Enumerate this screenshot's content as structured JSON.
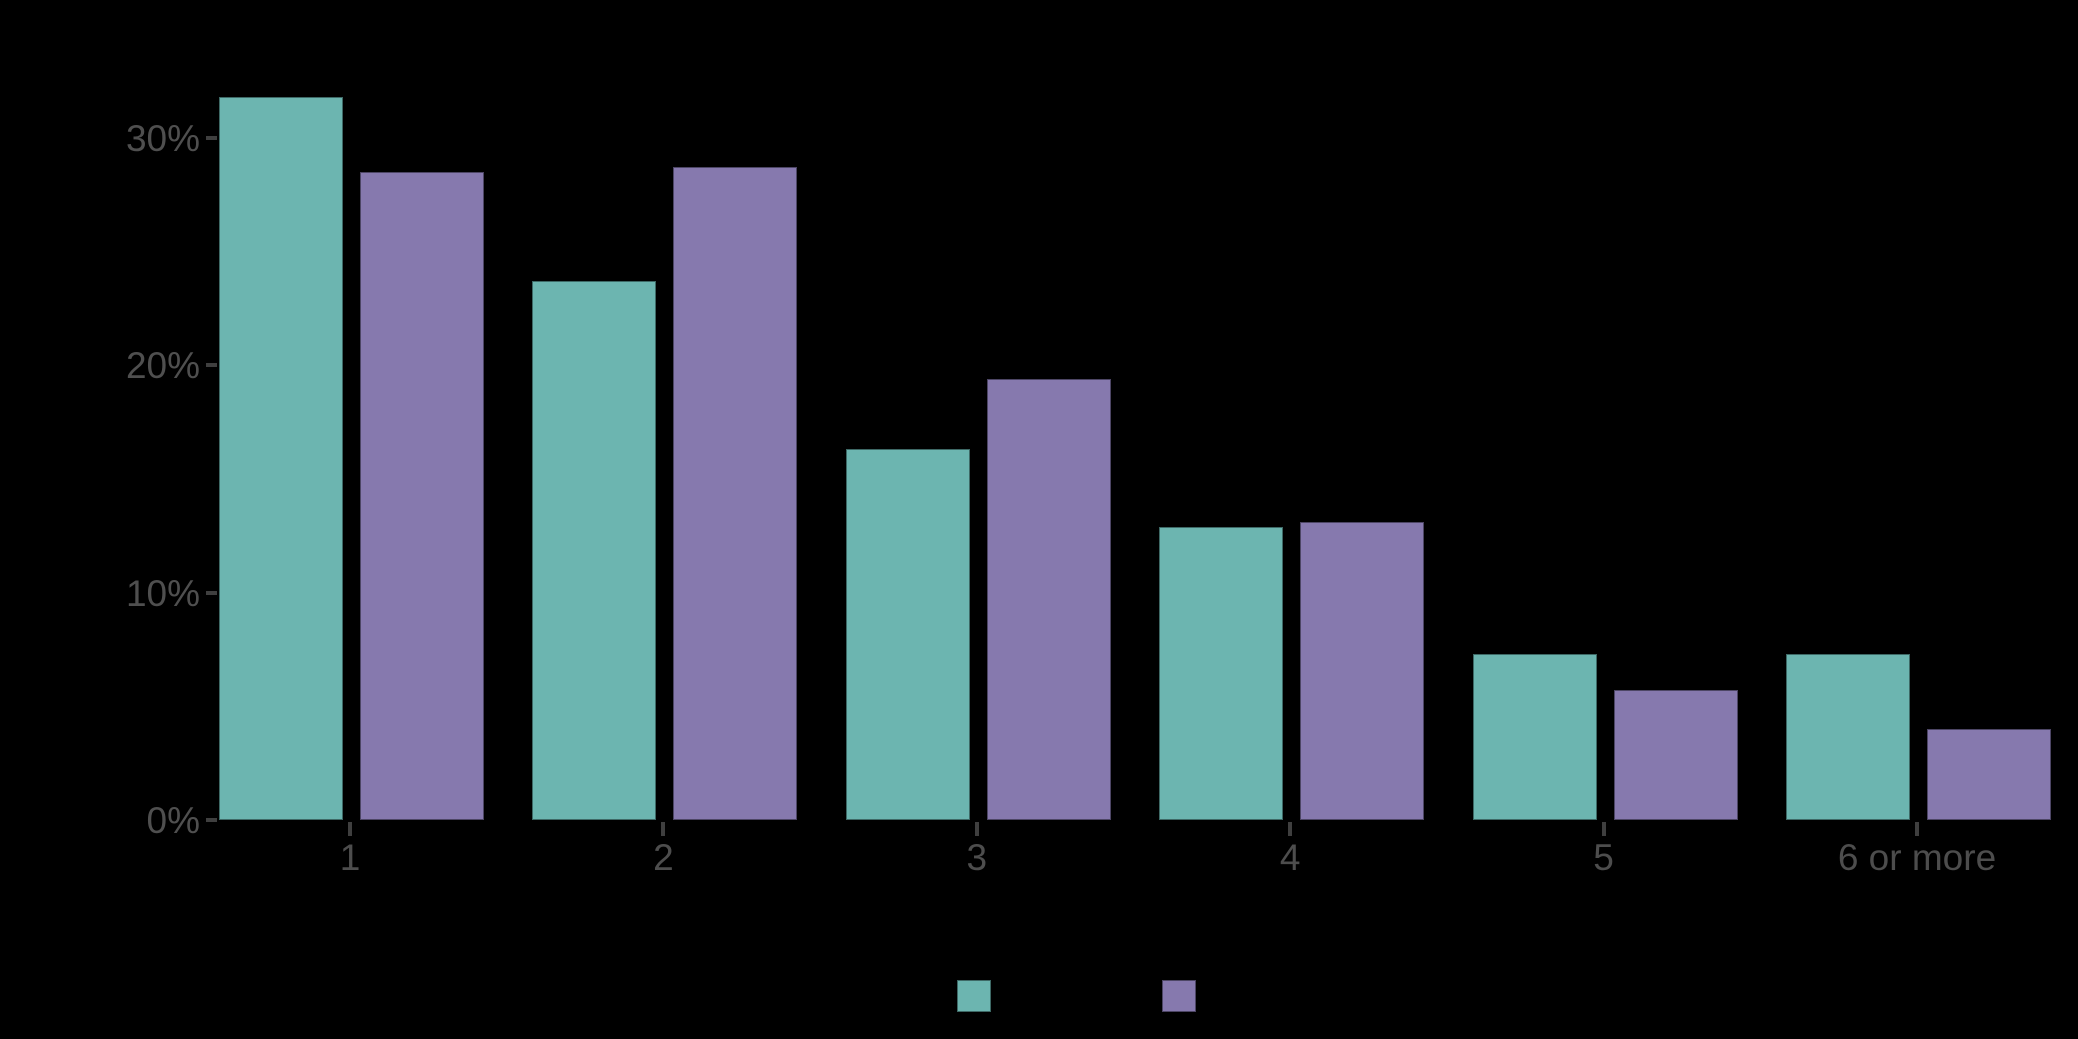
{
  "chart_data": {
    "type": "bar",
    "grouped": true,
    "categories": [
      "1",
      "2",
      "3",
      "4",
      "5",
      "6 or more"
    ],
    "series": [
      {
        "name": "series-teal",
        "color": "#6cb5b0",
        "values": [
          31.8,
          23.7,
          16.3,
          12.9,
          7.3,
          7.3
        ]
      },
      {
        "name": "series-purple",
        "color": "#8679ae",
        "values": [
          28.5,
          28.7,
          19.4,
          13.1,
          5.7,
          4.0
        ]
      }
    ],
    "title": "",
    "xlabel": "",
    "ylabel": "",
    "ylim": [
      0,
      33.4
    ],
    "yticks": [
      {
        "label": "0%",
        "value": 0
      },
      {
        "label": "10%",
        "value": 10
      },
      {
        "label": "20%",
        "value": 20
      },
      {
        "label": "30%",
        "value": 30
      }
    ],
    "grid": false,
    "legend_position": "bottom-center",
    "legend_swatches": [
      {
        "series": "series-teal",
        "color": "#6cb5b0"
      },
      {
        "series": "series-purple",
        "color": "#8679ae"
      }
    ]
  },
  "colors": {
    "background": "#000000",
    "tick_mark": "#3f3f3f",
    "y_label_text": "#4f4f4f",
    "x_label_text": "#4d4d4d",
    "bar_teal": "#6cb5b0",
    "bar_purple": "#8679ae"
  }
}
